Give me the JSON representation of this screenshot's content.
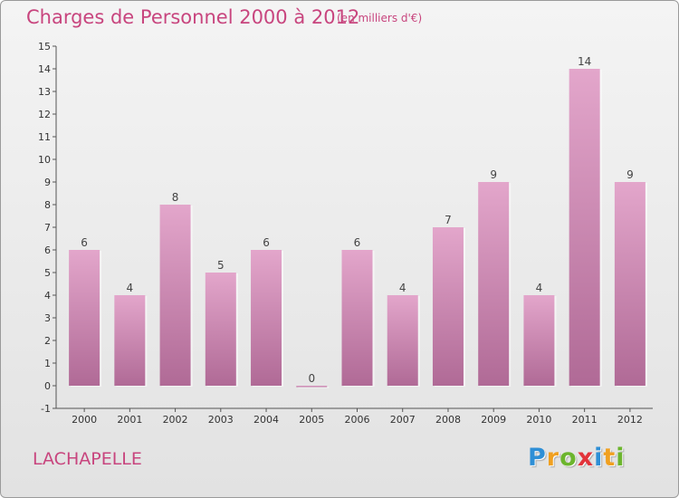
{
  "header": {
    "title": "Charges de Personnel 2000 à 2012",
    "subtitle": "(en milliers d'€)"
  },
  "footer": {
    "commune": "LACHAPELLE",
    "brand": [
      "P",
      "r",
      "o",
      "x",
      "i",
      "t",
      "i"
    ],
    "brand_colors": [
      "#2e8fd6",
      "#f0a020",
      "#6cb52d",
      "#e2333a",
      "#2e8fd6",
      "#f0a020",
      "#6cb52d"
    ]
  },
  "chart_data": {
    "type": "bar",
    "categories": [
      "2000",
      "2001",
      "2002",
      "2003",
      "2004",
      "2005",
      "2006",
      "2007",
      "2008",
      "2009",
      "2010",
      "2011",
      "2012"
    ],
    "values": [
      6,
      4,
      8,
      5,
      6,
      0,
      6,
      4,
      7,
      9,
      4,
      14,
      9
    ],
    "value_labels": [
      "6",
      "4",
      "8",
      "5",
      "6",
      "0",
      "6",
      "4",
      "7",
      "9",
      "4",
      "14",
      "9"
    ],
    "yticks": [
      -1,
      0,
      1,
      2,
      3,
      4,
      5,
      6,
      7,
      8,
      9,
      10,
      11,
      12,
      13,
      14,
      15
    ],
    "ytick_labels": [
      "-1",
      "0",
      "1",
      "2",
      "3",
      "4",
      "5",
      "6",
      "7",
      "8",
      "9",
      "10",
      "11",
      "12",
      "13",
      "14",
      "15"
    ],
    "ylim": [
      -1,
      15
    ],
    "bar_color": "#d889b6",
    "grid": false,
    "legend": "none"
  }
}
